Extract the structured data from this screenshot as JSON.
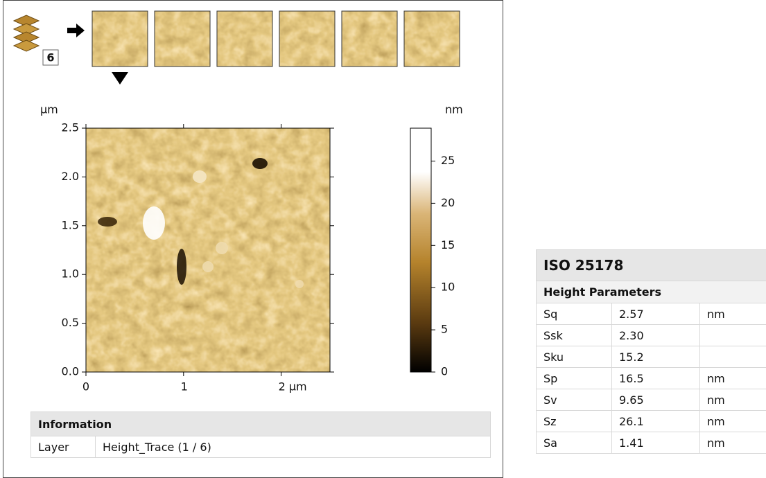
{
  "stack": {
    "count": "6"
  },
  "image_plot": {
    "y_unit": "µm",
    "xlim": [
      0,
      2.5
    ],
    "ylim": [
      0,
      2.5
    ],
    "xticks": [
      {
        "value": 0,
        "label": "0"
      },
      {
        "value": 1,
        "label": "1"
      },
      {
        "value": 2,
        "label": "2 µm"
      }
    ],
    "yticks": [
      {
        "value": 0,
        "label": "0.0"
      },
      {
        "value": 0.5,
        "label": "0.5"
      },
      {
        "value": 1,
        "label": "1.0"
      },
      {
        "value": 1.5,
        "label": "1.5"
      },
      {
        "value": 2,
        "label": "2.0"
      },
      {
        "value": 2.5,
        "label": "2.5"
      }
    ]
  },
  "colorbar": {
    "unit": "nm",
    "lim": [
      0,
      28.9
    ],
    "ticks": [
      0,
      5,
      10,
      15,
      20,
      25
    ]
  },
  "information": {
    "title": "Information",
    "rows": [
      [
        "Layer",
        "Height_Trace (1 / 6)"
      ]
    ]
  },
  "iso": {
    "title": "ISO 25178",
    "section": "Height Parameters",
    "rows": [
      [
        "Sq",
        "2.57",
        "nm"
      ],
      [
        "Ssk",
        "2.30",
        ""
      ],
      [
        "Sku",
        "15.2",
        ""
      ],
      [
        "Sp",
        "16.5",
        "nm"
      ],
      [
        "Sv",
        "9.65",
        "nm"
      ],
      [
        "Sz",
        "26.1",
        "nm"
      ],
      [
        "Sa",
        "1.41",
        "nm"
      ]
    ]
  }
}
